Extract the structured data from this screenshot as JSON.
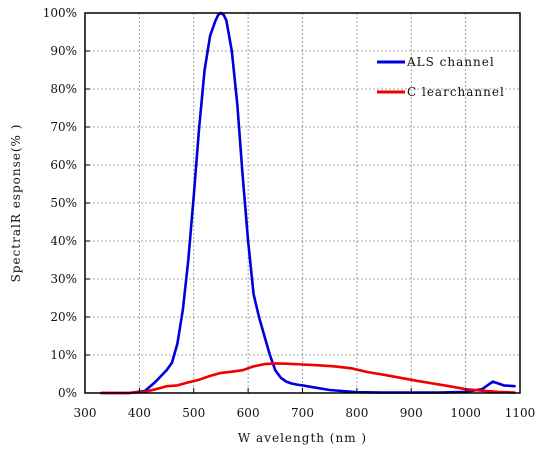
{
  "chart_data": {
    "type": "line",
    "xlabel": "W avelength (nm )",
    "ylabel": "SpectralR esponse(% )",
    "xlim": [
      300,
      1100
    ],
    "ylim": [
      0,
      100
    ],
    "xticks": [
      300,
      400,
      500,
      600,
      700,
      800,
      900,
      1000,
      1100
    ],
    "yticks": [
      0,
      10,
      20,
      30,
      40,
      50,
      60,
      70,
      80,
      90,
      100
    ],
    "xtick_labels": [
      "300",
      "400",
      "500",
      "600",
      "700",
      "800",
      "900",
      "1000",
      "1100"
    ],
    "ytick_labels": [
      "0%",
      "10%",
      "20%",
      "30%",
      "40%",
      "50%",
      "60%",
      "70%",
      "80%",
      "90%",
      "100%"
    ],
    "grid": true,
    "legend_position": "top-right",
    "series": [
      {
        "name": "ALS channel",
        "color": "#0000dd",
        "x": [
          330,
          380,
          410,
          430,
          450,
          460,
          470,
          480,
          490,
          500,
          510,
          520,
          530,
          540,
          545,
          550,
          555,
          560,
          570,
          580,
          590,
          600,
          610,
          620,
          630,
          640,
          650,
          660,
          670,
          680,
          690,
          700,
          720,
          750,
          800,
          850,
          900,
          950,
          1000,
          1030,
          1040,
          1050,
          1060,
          1070,
          1090
        ],
        "y": [
          0,
          0,
          0.5,
          3,
          6,
          8,
          13,
          22,
          35,
          52,
          70,
          85,
          94,
          98,
          99.5,
          100,
          99.5,
          98,
          90,
          76,
          57,
          40,
          26,
          20,
          15,
          10,
          6,
          4,
          3,
          2.5,
          2.2,
          2,
          1.5,
          0.8,
          0.2,
          0.1,
          0.1,
          0.1,
          0.3,
          1,
          2,
          3,
          2.5,
          2,
          1.8
        ]
      },
      {
        "name": "C learchannel",
        "color": "#ee0000",
        "x": [
          330,
          380,
          410,
          430,
          450,
          470,
          490,
          510,
          530,
          550,
          570,
          590,
          610,
          630,
          650,
          670,
          700,
          730,
          760,
          790,
          820,
          850,
          880,
          910,
          940,
          970,
          1000,
          1030,
          1060,
          1090
        ],
        "y": [
          0,
          0,
          0.3,
          1,
          1.8,
          2,
          2.8,
          3.5,
          4.5,
          5.3,
          5.6,
          6,
          7,
          7.6,
          7.8,
          7.7,
          7.5,
          7.3,
          7,
          6.5,
          5.5,
          4.8,
          4,
          3.2,
          2.5,
          1.8,
          1,
          0.6,
          0.3,
          0.1
        ]
      }
    ]
  }
}
